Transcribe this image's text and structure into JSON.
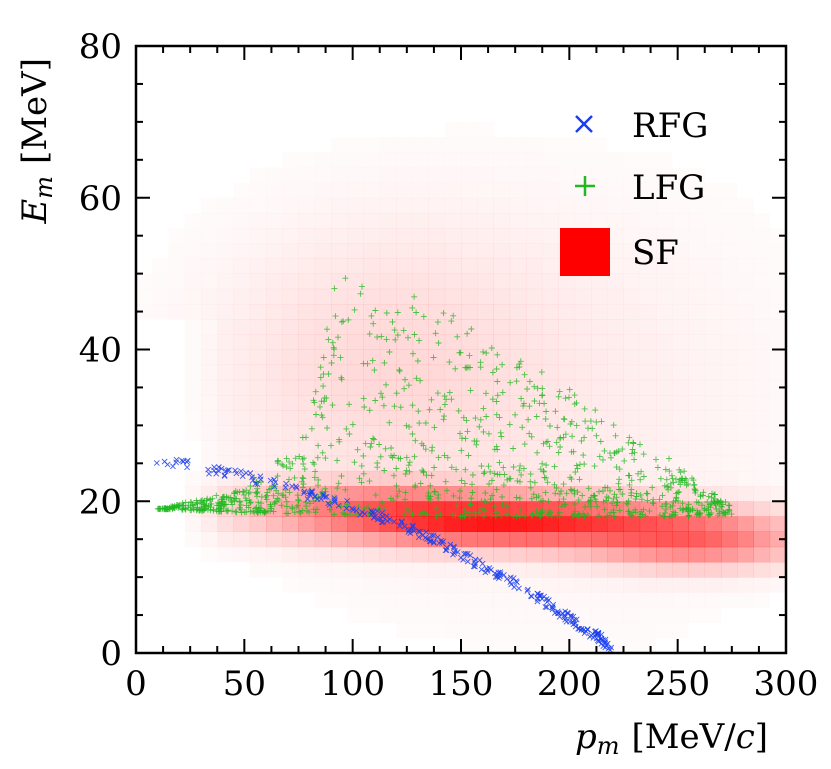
{
  "chart_data": {
    "type": "scatter",
    "xlabel_var": "p",
    "xlabel_sub": "m",
    "xlabel_unit": "[MeV/",
    "xlabel_unit_var": "c",
    "xlabel_unit_close": "]",
    "ylabel_var": "E",
    "ylabel_sub": "m",
    "ylabel_unit": "[MeV]",
    "xlim": [
      0,
      300
    ],
    "ylim": [
      0,
      80
    ],
    "x_ticks": [
      0,
      50,
      100,
      150,
      200,
      250,
      300
    ],
    "y_ticks": [
      0,
      20,
      40,
      60,
      80
    ],
    "x_tick_labels": [
      "0",
      "50",
      "100",
      "150",
      "200",
      "250",
      "300"
    ],
    "y_tick_labels": [
      "0",
      "20",
      "40",
      "60",
      "80"
    ],
    "legend": [
      {
        "label": "RFG",
        "marker": "x",
        "color": "#1a3ef0"
      },
      {
        "label": "LFG",
        "marker": "+",
        "color": "#22b822"
      },
      {
        "label": "SF",
        "marker": "square",
        "color": "#ff0000"
      }
    ],
    "series": [
      {
        "name": "RFG",
        "kind": "curve-scatter",
        "color": "#1a3ef0",
        "curve": [
          [
            2,
            24.5
          ],
          [
            20,
            25
          ],
          [
            40,
            24
          ],
          [
            60,
            22.5
          ],
          [
            80,
            20.8
          ],
          [
            100,
            19.2
          ],
          [
            120,
            17.2
          ],
          [
            140,
            14.5
          ],
          [
            160,
            11.5
          ],
          [
            180,
            8.5
          ],
          [
            200,
            4.5
          ],
          [
            220,
            0.8
          ]
        ]
      },
      {
        "name": "LFG",
        "kind": "region-scatter",
        "color": "#22b822",
        "lower_edge": [
          [
            10,
            19
          ],
          [
            50,
            18.5
          ],
          [
            100,
            18.2
          ],
          [
            150,
            18
          ],
          [
            200,
            18
          ],
          [
            250,
            18
          ],
          [
            275,
            18.2
          ]
        ],
        "upper_edge": [
          [
            10,
            19
          ],
          [
            40,
            21
          ],
          [
            60,
            24
          ],
          [
            80,
            30
          ],
          [
            92,
            51.5
          ],
          [
            110,
            48
          ],
          [
            130,
            47
          ],
          [
            150,
            44
          ],
          [
            175,
            39
          ],
          [
            200,
            35
          ],
          [
            225,
            29
          ],
          [
            250,
            25
          ],
          [
            272,
            20
          ]
        ]
      },
      {
        "name": "SF",
        "kind": "density",
        "color": "#ff0000",
        "blobs": [
          {
            "cx": 170,
            "cy": 17.2,
            "sx": 60,
            "sy": 2.2,
            "w": 0.8
          },
          {
            "cx": 260,
            "cy": 14.5,
            "sx": 35,
            "sy": 2.4,
            "w": 0.45
          },
          {
            "cx": 110,
            "cy": 20,
            "sx": 45,
            "sy": 2.0,
            "w": 0.3
          },
          {
            "cx": 110,
            "cy": 38,
            "sx": 55,
            "sy": 13,
            "w": 0.12
          },
          {
            "cx": 200,
            "cy": 33,
            "sx": 80,
            "sy": 20,
            "w": 0.06
          }
        ]
      }
    ]
  }
}
